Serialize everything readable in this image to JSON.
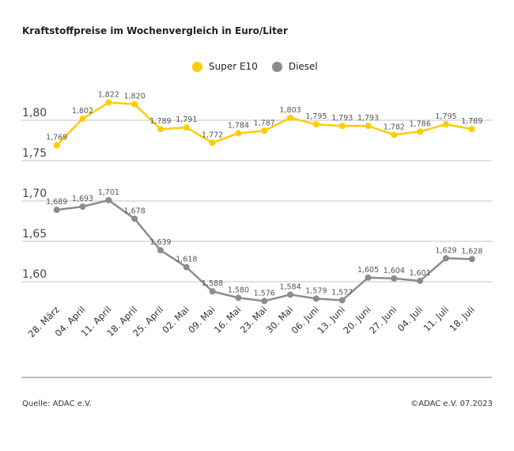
{
  "chart_data": {
    "type": "line",
    "title": "Kraftstoffpreise im Wochenvergleich in Euro/Liter",
    "categories": [
      "28. März",
      "04. April",
      "11. April",
      "18. April",
      "25. April",
      "02. Mai",
      "09. Mai",
      "16. Mai",
      "23. Mai",
      "30. Mai",
      "06. Juni",
      "13. Juni",
      "20. Juni",
      "27. Juni",
      "04. Juli",
      "11. Juli",
      "18. Juli"
    ],
    "series": [
      {
        "name": "Super E10",
        "color": "#FFCC00",
        "values": [
          1.769,
          1.802,
          1.822,
          1.82,
          1.789,
          1.791,
          1.772,
          1.784,
          1.787,
          1.803,
          1.795,
          1.793,
          1.793,
          1.782,
          1.786,
          1.795,
          1.789
        ],
        "labels": [
          "1,769",
          "1,802",
          "1,822",
          "1,820",
          "1,789",
          "1,791",
          "1,772",
          "1,784",
          "1,787",
          "1,803",
          "1,795",
          "1,793",
          "1,793",
          "1,782",
          "1,786",
          "1,795",
          "1,789"
        ]
      },
      {
        "name": "Diesel",
        "color": "#8C8C8C",
        "values": [
          1.689,
          1.693,
          1.701,
          1.678,
          1.639,
          1.618,
          1.588,
          1.58,
          1.576,
          1.584,
          1.579,
          1.577,
          1.605,
          1.604,
          1.601,
          1.629,
          1.628
        ],
        "labels": [
          "1,689",
          "1,693",
          "1,701",
          "1,678",
          "1,639",
          "1,618",
          "1,588",
          "1,580",
          "1,576",
          "1,584",
          "1,579",
          "1,577",
          "1,605",
          "1,604",
          "1,601",
          "1,629",
          "1,628"
        ]
      }
    ],
    "yticks": [
      1.6,
      1.65,
      1.7,
      1.75,
      1.8
    ],
    "ytick_labels": [
      "1,60",
      "1,65",
      "1,70",
      "1,75",
      "1,80"
    ],
    "grid": true,
    "legend": "top-center"
  },
  "footer": {
    "source": "Quelle: ADAC e.V.",
    "copyright": "©ADAC e.V. 07.2023"
  }
}
